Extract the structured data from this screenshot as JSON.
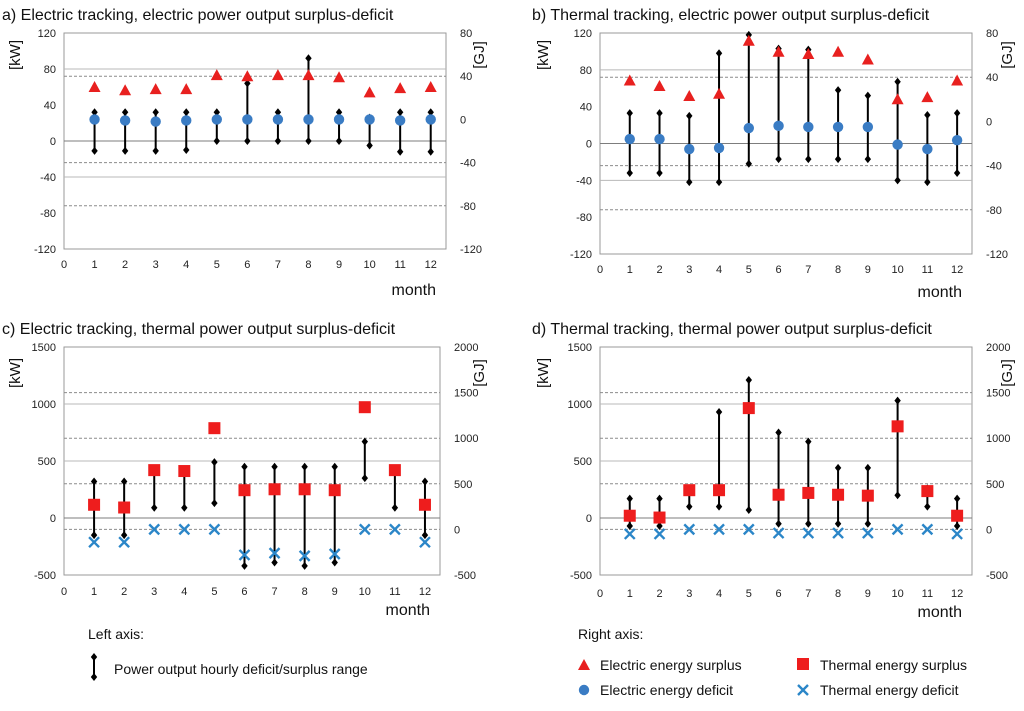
{
  "colors": {
    "electric_surplus": "#e8201f",
    "electric_deficit": "#3a7cc4",
    "thermal_surplus": "#ee1d1d",
    "thermal_deficit": "#2b86c8",
    "range": "#000000",
    "grid": "#b8b8b8",
    "axis": "#999999"
  },
  "legend": {
    "left_axis_title": "Left axis:",
    "right_axis_title": "Right axis:",
    "range": "Power output hourly deficit/surplus range",
    "electric_surplus": "Electric energy surplus",
    "electric_deficit": "Electric energy deficit",
    "thermal_surplus": "Thermal energy surplus",
    "thermal_deficit": "Thermal energy deficit"
  },
  "chart_data": [
    {
      "id": "a",
      "type": "scatter",
      "title": "a) Electric tracking, electric power output surplus-deficit",
      "xlabel": "month",
      "ylabel_left": "[kW]",
      "ylabel_right": "[GJ]",
      "x_ticks": [
        "0",
        "1",
        "2",
        "3",
        "4",
        "5",
        "6",
        "7",
        "8",
        "9",
        "10",
        "11",
        "12"
      ],
      "xlim": [
        0,
        12.5
      ],
      "ylim_left": [
        -120,
        120
      ],
      "left_ticks": [
        -120,
        -80,
        -40,
        0,
        40,
        80,
        120
      ],
      "left_tick_labels": [
        "-120",
        "-80",
        "-40",
        "0",
        "40",
        "80",
        "120"
      ],
      "ylim_right": [
        -120,
        80
      ],
      "right_ticks": [
        -120,
        -80,
        -40,
        0,
        40,
        80
      ],
      "right_tick_labels": [
        "-120",
        "-80",
        "-40",
        "0",
        "40",
        "80"
      ],
      "grid_left": [
        -40,
        80
      ],
      "dashed_right": [
        -40,
        40,
        -80
      ],
      "range_low": [
        -11,
        -11,
        -11,
        -10,
        0,
        0,
        0,
        0,
        0,
        -5,
        -12,
        -12
      ],
      "range_high": [
        32,
        32,
        32,
        32,
        32,
        64,
        32,
        92,
        32,
        26,
        32,
        32
      ],
      "series": [
        {
          "name": "Electric energy surplus",
          "marker": "triangle",
          "axis": "right",
          "values": [
            30,
            27,
            28,
            28,
            41,
            40,
            41,
            41,
            39,
            25,
            29,
            30
          ]
        },
        {
          "name": "Electric energy deficit",
          "marker": "circle",
          "axis": "right",
          "values": [
            0,
            -1,
            -2,
            -1,
            0,
            0,
            0,
            0,
            0,
            0,
            -1,
            0
          ]
        }
      ]
    },
    {
      "id": "b",
      "type": "scatter",
      "title": "b) Thermal tracking, electric power output surplus-deficit",
      "xlabel": "month",
      "ylabel_left": "[kW]",
      "ylabel_right": "[GJ]",
      "x_ticks": [
        "0",
        "1",
        "2",
        "3",
        "4",
        "5",
        "6",
        "7",
        "8",
        "9",
        "10",
        "11",
        "12"
      ],
      "xlim": [
        0,
        12.5
      ],
      "ylim_left": [
        -120,
        120
      ],
      "left_ticks": [
        -120,
        -80,
        -40,
        0,
        40,
        80,
        120
      ],
      "left_tick_labels": [
        "-120",
        "-80",
        "-40",
        "0",
        "40",
        "80",
        "120"
      ],
      "ylim_right": [
        -120,
        80
      ],
      "right_ticks": [
        -120,
        -80,
        -40,
        0,
        40,
        80
      ],
      "right_tick_labels": [
        "-120",
        "-80",
        "-40",
        "0",
        "40",
        "80"
      ],
      "grid_left": [
        -40,
        80
      ],
      "dashed_right": [
        -40,
        40,
        -80
      ],
      "range_low": [
        -32,
        -32,
        -42,
        -42,
        -22,
        -17,
        -17,
        -17,
        -17,
        -40,
        -42,
        -32
      ],
      "range_high": [
        33,
        33,
        30,
        98,
        118,
        103,
        102,
        58,
        52,
        67,
        31,
        33
      ],
      "series": [
        {
          "name": "Electric energy surplus",
          "marker": "triangle",
          "axis": "right",
          "values": [
            37,
            32,
            23,
            25,
            73,
            63,
            61,
            63,
            56,
            20,
            22,
            37
          ]
        },
        {
          "name": "Electric energy deficit",
          "marker": "circle",
          "axis": "right",
          "values": [
            -16,
            -16,
            -25,
            -24,
            -6,
            -4,
            -5,
            -5,
            -5,
            -21,
            -25,
            -17
          ]
        }
      ]
    },
    {
      "id": "c",
      "type": "scatter",
      "title": "c) Electric tracking, thermal power output surplus-deficit",
      "xlabel": "month",
      "ylabel_left": "[kW]",
      "ylabel_right": "[GJ]",
      "x_ticks": [
        "0",
        "1",
        "2",
        "3",
        "4",
        "5",
        "6",
        "7",
        "8",
        "9",
        "10",
        "11",
        "12"
      ],
      "xlim": [
        0,
        12.5
      ],
      "ylim_left": [
        -500,
        1500
      ],
      "left_ticks": [
        -500,
        0,
        500,
        1000,
        1500
      ],
      "left_tick_labels": [
        "-500",
        "0",
        "500",
        "1000",
        "1500"
      ],
      "ylim_right": [
        -500,
        2000
      ],
      "right_ticks": [
        -500,
        0,
        500,
        1000,
        1500,
        2000
      ],
      "right_tick_labels": [
        "-500",
        "0",
        "500",
        "1000",
        "1500",
        "2000"
      ],
      "grid_left": [
        500,
        1000
      ],
      "dashed_right": [
        0,
        500,
        1000,
        1500
      ],
      "range_low": [
        -150,
        -150,
        90,
        90,
        130,
        -420,
        -390,
        -420,
        -390,
        350,
        90,
        -150
      ],
      "range_high": [
        320,
        320,
        420,
        410,
        490,
        450,
        450,
        450,
        450,
        670,
        420,
        320
      ],
      "series": [
        {
          "name": "Thermal energy surplus",
          "marker": "square",
          "axis": "right",
          "values": [
            270,
            240,
            650,
            640,
            1110,
            430,
            440,
            440,
            430,
            1340,
            650,
            270
          ]
        },
        {
          "name": "Thermal energy deficit",
          "marker": "x",
          "axis": "right",
          "values": [
            -140,
            -140,
            0,
            0,
            0,
            -280,
            -260,
            -290,
            -270,
            0,
            0,
            -140
          ]
        }
      ]
    },
    {
      "id": "d",
      "type": "scatter",
      "title": "d) Thermal tracking, thermal power output surplus-deficit",
      "xlabel": "month",
      "ylabel_left": "[kW]",
      "ylabel_right": "[GJ]",
      "x_ticks": [
        "0",
        "1",
        "2",
        "3",
        "4",
        "5",
        "6",
        "7",
        "8",
        "9",
        "10",
        "11",
        "12"
      ],
      "xlim": [
        0,
        12.5
      ],
      "ylim_left": [
        -500,
        1500
      ],
      "left_ticks": [
        -500,
        0,
        500,
        1000,
        1500
      ],
      "left_tick_labels": [
        "-500",
        "0",
        "500",
        "1000",
        "1500"
      ],
      "ylim_right": [
        -500,
        2000
      ],
      "right_ticks": [
        -500,
        0,
        500,
        1000,
        1500,
        2000
      ],
      "right_tick_labels": [
        "-500",
        "0",
        "500",
        "1000",
        "1500",
        "2000"
      ],
      "grid_left": [
        500,
        1000
      ],
      "dashed_right": [
        0,
        500,
        1000,
        1500
      ],
      "range_low": [
        -70,
        -70,
        100,
        100,
        70,
        -50,
        -50,
        -50,
        -50,
        200,
        100,
        -70
      ],
      "range_high": [
        170,
        170,
        260,
        930,
        1210,
        750,
        670,
        440,
        440,
        1030,
        260,
        170
      ],
      "series": [
        {
          "name": "Thermal energy surplus",
          "marker": "square",
          "axis": "right",
          "values": [
            150,
            130,
            430,
            430,
            1330,
            380,
            400,
            380,
            370,
            1130,
            420,
            150
          ]
        },
        {
          "name": "Thermal energy deficit",
          "marker": "x",
          "axis": "right",
          "values": [
            -50,
            -50,
            0,
            0,
            0,
            -40,
            -40,
            -40,
            -40,
            0,
            0,
            -50
          ]
        }
      ]
    }
  ]
}
